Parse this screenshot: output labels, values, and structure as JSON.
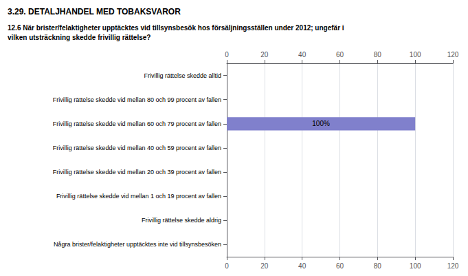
{
  "chart_data": {
    "type": "bar",
    "orientation": "horizontal",
    "title": "3.29. DETALJHANDEL MED TOBAKSVAROR",
    "subtitle": "12.6 När brister/felaktigheter upptäcktes vid tillsynsbesök hos försäljningsställen under 2012; ungefär i\nvilken utsträckning skedde frivillig rättelse?",
    "categories": [
      "Frivillig rättelse skedde alltid",
      "Frivillig rättelse skedde vid mellan 80 och 99 procent av fallen",
      "Frivillig rättelse skedde vid mellan 60 och 79 procent av fallen",
      "Frivillig rättelse skedde vid mellan 40 och 59 procent av fallen",
      "Frivillig rättelse skedde vid mellan 20 och 39 procent av fallen",
      "Frivillig rättelse skedde vid mellan 1 och 19 procent av fallen",
      "Frivillig rättelse skedde aldrig",
      "Några brister/felaktigheter upptäcktes inte vid tillsynsbesöken"
    ],
    "values": [
      0,
      0,
      100,
      0,
      0,
      0,
      0,
      0
    ],
    "value_labels": [
      null,
      null,
      "100%",
      null,
      null,
      null,
      null,
      null
    ],
    "color": "#8080cc",
    "xlim": [
      0,
      120
    ],
    "xticks": [
      0,
      20,
      40,
      60,
      80,
      100,
      120
    ],
    "grid": true
  }
}
